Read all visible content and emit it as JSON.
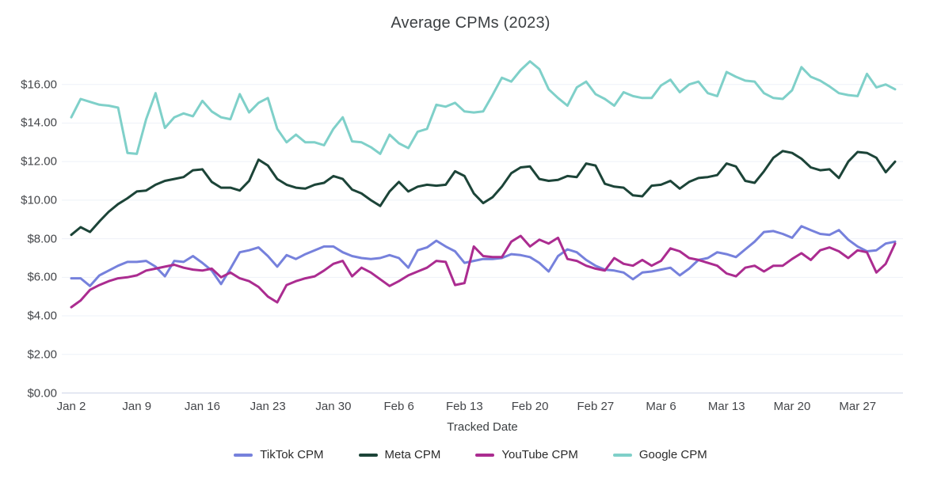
{
  "chart": {
    "title": "Average CPMs (2023)",
    "x_axis_title": "Tracked Date"
  },
  "chart_data": {
    "type": "line",
    "title": "Average CPMs (2023)",
    "xlabel": "Tracked Date",
    "ylabel": "",
    "grid": "horizontal",
    "legend_position": "bottom",
    "num_points": 89,
    "x_start": "Jan 2",
    "x_frequency": "daily",
    "ylim": [
      0,
      17.4
    ],
    "y_ticks": [
      {
        "value": 0,
        "label": "$0.00"
      },
      {
        "value": 2,
        "label": "$2.00"
      },
      {
        "value": 4,
        "label": "$4.00"
      },
      {
        "value": 6,
        "label": "$6.00"
      },
      {
        "value": 8,
        "label": "$8.00"
      },
      {
        "value": 10,
        "label": "$10.00"
      },
      {
        "value": 12,
        "label": "$12.00"
      },
      {
        "value": 14,
        "label": "$14.00"
      },
      {
        "value": 16,
        "label": "$16.00"
      }
    ],
    "x_ticks": [
      {
        "index": 0,
        "label": "Jan 2"
      },
      {
        "index": 7,
        "label": "Jan 9"
      },
      {
        "index": 14,
        "label": "Jan 16"
      },
      {
        "index": 21,
        "label": "Jan 23"
      },
      {
        "index": 28,
        "label": "Jan 30"
      },
      {
        "index": 35,
        "label": "Feb 6"
      },
      {
        "index": 42,
        "label": "Feb 13"
      },
      {
        "index": 49,
        "label": "Feb 20"
      },
      {
        "index": 56,
        "label": "Feb 27"
      },
      {
        "index": 63,
        "label": "Mar 6"
      },
      {
        "index": 70,
        "label": "Mar 13"
      },
      {
        "index": 77,
        "label": "Mar 20"
      },
      {
        "index": 84,
        "label": "Mar 27"
      }
    ],
    "series": [
      {
        "name": "TikTok CPM",
        "color": "#7681dc",
        "values": [
          5.95,
          5.95,
          5.55,
          6.1,
          6.35,
          6.6,
          6.8,
          6.8,
          6.85,
          6.55,
          6.05,
          6.85,
          6.8,
          7.1,
          6.75,
          6.35,
          5.65,
          6.45,
          7.3,
          7.4,
          7.55,
          7.1,
          6.55,
          7.15,
          6.95,
          7.2,
          7.4,
          7.6,
          7.6,
          7.3,
          7.1,
          7.0,
          6.95,
          7.0,
          7.15,
          7.0,
          6.5,
          7.4,
          7.55,
          7.9,
          7.6,
          7.35,
          6.75,
          6.85,
          6.95,
          6.95,
          7.0,
          7.2,
          7.15,
          7.05,
          6.75,
          6.3,
          7.1,
          7.45,
          7.3,
          6.9,
          6.6,
          6.4,
          6.35,
          6.25,
          5.9,
          6.25,
          6.3,
          6.4,
          6.5,
          6.1,
          6.45,
          6.9,
          7.0,
          7.3,
          7.2,
          7.05,
          7.45,
          7.85,
          8.35,
          8.4,
          8.25,
          8.05,
          8.65,
          8.45,
          8.25,
          8.2,
          8.45,
          7.95,
          7.6,
          7.35,
          7.4,
          7.75,
          7.85
        ]
      },
      {
        "name": "Meta CPM",
        "color": "#1c4438",
        "values": [
          8.2,
          8.6,
          8.35,
          8.9,
          9.4,
          9.8,
          10.1,
          10.45,
          10.5,
          10.8,
          11.0,
          11.1,
          11.2,
          11.55,
          11.6,
          10.95,
          10.65,
          10.65,
          10.5,
          11.0,
          12.1,
          11.8,
          11.1,
          10.8,
          10.65,
          10.6,
          10.8,
          10.9,
          11.25,
          11.1,
          10.55,
          10.35,
          10.0,
          9.7,
          10.45,
          10.95,
          10.45,
          10.7,
          10.8,
          10.75,
          10.8,
          11.5,
          11.25,
          10.35,
          9.85,
          10.15,
          10.7,
          11.4,
          11.7,
          11.75,
          11.1,
          11.0,
          11.05,
          11.25,
          11.2,
          11.9,
          11.8,
          10.85,
          10.7,
          10.65,
          10.25,
          10.2,
          10.75,
          10.8,
          11.0,
          10.6,
          10.95,
          11.15,
          11.2,
          11.3,
          11.9,
          11.75,
          11.0,
          10.9,
          11.5,
          12.2,
          12.55,
          12.45,
          12.15,
          11.7,
          11.55,
          11.6,
          11.15,
          12.0,
          12.5,
          12.45,
          12.2,
          11.45,
          12.0
        ]
      },
      {
        "name": "YouTube CPM",
        "color": "#ab2c90",
        "values": [
          4.45,
          4.8,
          5.35,
          5.6,
          5.8,
          5.95,
          6.0,
          6.1,
          6.35,
          6.45,
          6.55,
          6.65,
          6.5,
          6.4,
          6.35,
          6.45,
          6.0,
          6.25,
          5.95,
          5.8,
          5.5,
          5.0,
          4.7,
          5.6,
          5.8,
          5.95,
          6.05,
          6.35,
          6.7,
          6.85,
          6.05,
          6.5,
          6.25,
          5.9,
          5.55,
          5.8,
          6.1,
          6.3,
          6.5,
          6.85,
          6.8,
          5.6,
          5.7,
          7.6,
          7.1,
          7.05,
          7.05,
          7.85,
          8.15,
          7.6,
          7.95,
          7.75,
          8.05,
          6.95,
          6.85,
          6.6,
          6.45,
          6.35,
          7.0,
          6.7,
          6.6,
          6.9,
          6.6,
          6.85,
          7.5,
          7.35,
          7.0,
          6.9,
          6.75,
          6.6,
          6.2,
          6.05,
          6.5,
          6.6,
          6.3,
          6.6,
          6.6,
          6.95,
          7.25,
          6.9,
          7.4,
          7.55,
          7.35,
          7.0,
          7.4,
          7.3,
          6.25,
          6.7,
          7.75
        ]
      },
      {
        "name": "Google CPM",
        "color": "#7fd0c9",
        "values": [
          14.3,
          15.25,
          15.1,
          14.95,
          14.9,
          14.8,
          12.45,
          12.4,
          14.2,
          15.55,
          13.75,
          14.3,
          14.5,
          14.35,
          15.15,
          14.6,
          14.3,
          14.2,
          15.5,
          14.55,
          15.05,
          15.3,
          13.7,
          13.0,
          13.4,
          13.0,
          13.0,
          12.85,
          13.7,
          14.3,
          13.05,
          13.0,
          12.75,
          12.4,
          13.4,
          12.95,
          12.7,
          13.55,
          13.7,
          14.95,
          14.85,
          15.05,
          14.6,
          14.55,
          14.6,
          15.45,
          16.35,
          16.15,
          16.75,
          17.2,
          16.8,
          15.75,
          15.3,
          14.9,
          15.85,
          16.15,
          15.5,
          15.25,
          14.9,
          15.6,
          15.4,
          15.3,
          15.3,
          15.95,
          16.25,
          15.6,
          16.0,
          16.15,
          15.55,
          15.4,
          16.65,
          16.4,
          16.2,
          16.15,
          15.55,
          15.3,
          15.25,
          15.7,
          16.9,
          16.4,
          16.2,
          15.9,
          15.55,
          15.45,
          15.4,
          16.55,
          15.85,
          16.0,
          15.75
        ]
      }
    ],
    "style": {
      "background": "#ffffff",
      "gridline_color": "#eef1f8",
      "baseline_color": "#d9dfee",
      "title_color": "#3c4043",
      "tick_label_color": "#44464a",
      "line_width": 3
    }
  }
}
